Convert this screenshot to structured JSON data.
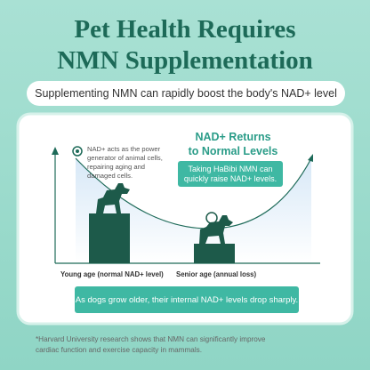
{
  "header": {
    "title_lines": [
      "Pet Health Requires",
      "NMN Supplementation"
    ]
  },
  "subtitle": "Supplementing NMN can rapidly boost the body's NAD+ level",
  "diagram": {
    "annotation_lines": [
      "NAD+ acts as the power",
      "generator of animal cells,",
      "repairing aging and",
      "damaged cells."
    ],
    "heading_lines": [
      "NAD+ Returns",
      "to Normal Levels"
    ],
    "callout_lines": [
      "Taking HaBibi NMN can",
      "quickly raise NAD+ levels."
    ],
    "labels": [
      "Young age (normal NAD+ level)",
      "Senior age (annual loss)"
    ],
    "banner": "As dogs grow older, their internal NAD+ levels drop sharply."
  },
  "footnote_lines": [
    "*Harvard University research shows that NMN can significantly improve",
    "cardiac function and exercise capacity in mammals."
  ]
}
